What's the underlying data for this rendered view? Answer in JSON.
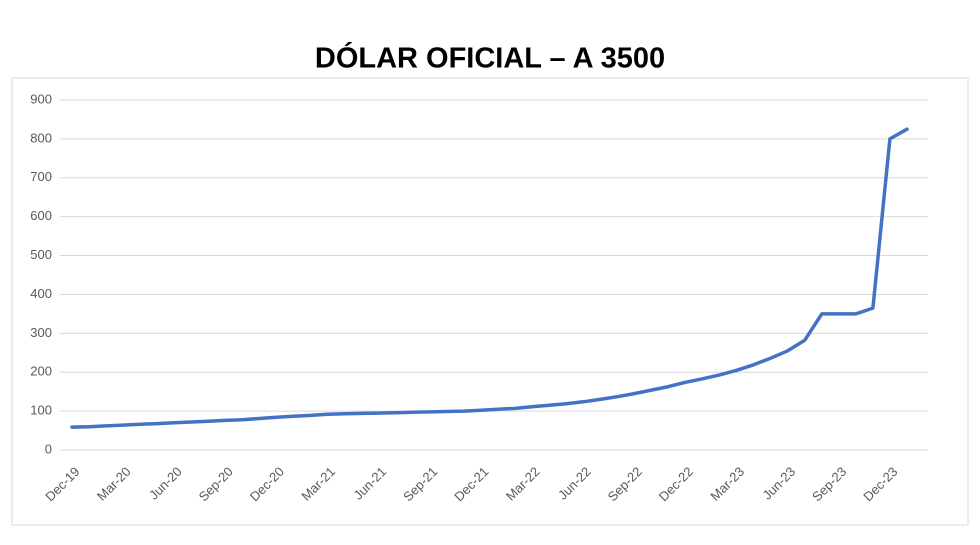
{
  "chart_data": {
    "type": "line",
    "title": "DÓLAR OFICIAL – A 3500",
    "categories": [
      "Dec-19",
      null,
      null,
      "Mar-20",
      null,
      null,
      "Jun-20",
      null,
      null,
      "Sep-20",
      null,
      null,
      "Dec-20",
      null,
      null,
      "Mar-21",
      null,
      null,
      "Jun-21",
      null,
      null,
      "Sep-21",
      null,
      null,
      "Dec-21",
      null,
      null,
      "Mar-22",
      null,
      null,
      "Jun-22",
      null,
      null,
      "Sep-22",
      null,
      null,
      "Dec-22",
      null,
      null,
      "Mar-23",
      null,
      null,
      "Jun-23",
      null,
      null,
      "Sep-23",
      null,
      null,
      "Dec-23",
      null
    ],
    "values": [
      59,
      60,
      62,
      64,
      66,
      68,
      70,
      72,
      74,
      76,
      78,
      81,
      84,
      87,
      89,
      92,
      93,
      94,
      95,
      96,
      97,
      98,
      99,
      100,
      102,
      105,
      107,
      111,
      115,
      119,
      124,
      130,
      137,
      145,
      154,
      163,
      174,
      183,
      193,
      205,
      219,
      236,
      255,
      282,
      350,
      350,
      350,
      365,
      800,
      825
    ],
    "color": "#4472c4",
    "ylim": [
      0,
      900
    ],
    "yticks": [
      0,
      100,
      200,
      300,
      400,
      500,
      600,
      700,
      800,
      900
    ],
    "grid": true
  }
}
